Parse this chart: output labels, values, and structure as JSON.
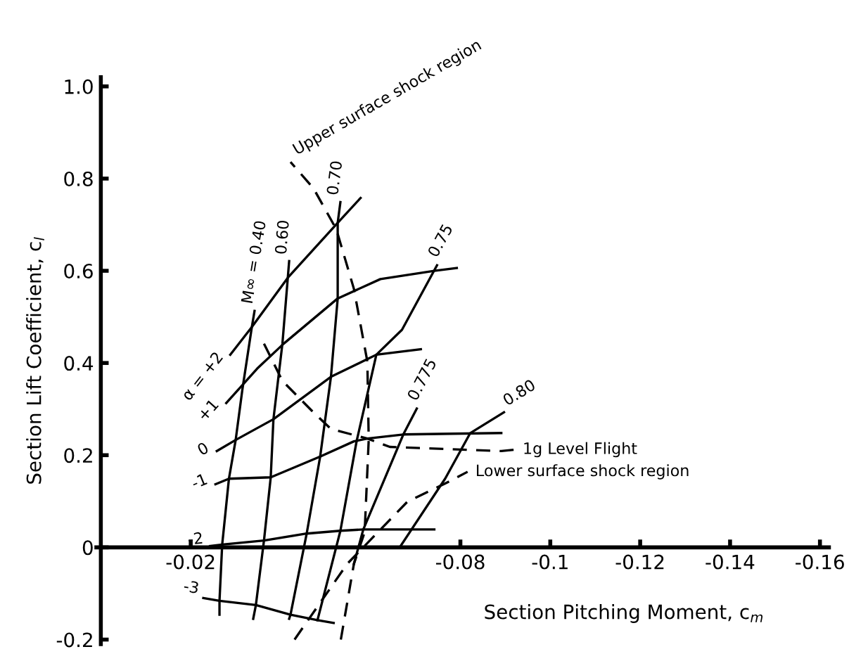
{
  "chart_data": {
    "type": "line",
    "xlabel": "Section Pitching Moment, c$_{m}$",
    "ylabel": "Section Lift Coefficient, c$_{l}$",
    "xlim": [
      0.001,
      -0.162
    ],
    "ylim": [
      -0.21,
      1.02
    ],
    "xticks": [
      -0.02,
      -0.08,
      -0.1,
      -0.12,
      -0.14,
      -0.16
    ],
    "yticks": [
      -0.2,
      0,
      0.2,
      0.4,
      0.6,
      0.8,
      {
        "value": 1.0,
        "label": "1.0"
      }
    ],
    "grid": false,
    "legend": false,
    "marker": "none",
    "line_style": "solid",
    "series": [
      {
        "name": "M∞ = 0.40",
        "color": "#000000",
        "x": [
          -0.0264,
          -0.0264,
          -0.027,
          -0.0285,
          -0.03,
          -0.0315,
          -0.0336,
          -0.0342
        ],
        "values": [
          -0.146,
          -0.116,
          0.006,
          0.149,
          0.233,
          0.343,
          0.478,
          0.513
        ]
      },
      {
        "name": "0.60",
        "color": "#000000",
        "x": [
          -0.0339,
          -0.0345,
          -0.0363,
          -0.0378,
          -0.0384,
          -0.0404,
          -0.0416,
          -0.0419
        ],
        "values": [
          -0.155,
          -0.125,
          0.015,
          0.152,
          0.278,
          0.442,
          0.585,
          0.621
        ]
      },
      {
        "name": "0.70",
        "color": "#000000",
        "x": [
          -0.0419,
          -0.0422,
          -0.0458,
          -0.0488,
          -0.0512,
          -0.0527,
          -0.0527,
          -0.0533
        ],
        "values": [
          -0.155,
          -0.146,
          0.03,
          0.197,
          0.37,
          0.54,
          0.704,
          0.749
        ]
      },
      {
        "name": "0.75",
        "color": "#000000",
        "x": [
          -0.0482,
          -0.0533,
          -0.0569,
          -0.0613,
          -0.067,
          -0.0748
        ],
        "values": [
          -0.158,
          0.036,
          0.23,
          0.418,
          0.472,
          0.612
        ]
      },
      {
        "name": "0.775",
        "color": "#000000",
        "x": [
          -0.0563,
          -0.0584,
          -0.0673,
          -0.0703
        ],
        "values": [
          -0.036,
          0.039,
          0.245,
          0.301
        ]
      },
      {
        "name": "0.80",
        "color": "#000000",
        "x": [
          -0.0667,
          -0.0766,
          -0.0822,
          -0.0897
        ],
        "values": [
          0.003,
          0.149,
          0.248,
          0.293
        ]
      },
      {
        "name": "α = +2",
        "color": "#000000",
        "x": [
          -0.0578,
          -0.0527,
          -0.0416,
          -0.0336,
          -0.0288
        ],
        "values": [
          0.758,
          0.704,
          0.585,
          0.478,
          0.418
        ]
      },
      {
        "name": "+1",
        "color": "#000000",
        "x": [
          -0.0792,
          -0.0742,
          -0.0622,
          -0.0527,
          -0.0407,
          -0.0348,
          -0.0279
        ],
        "values": [
          0.606,
          0.6,
          0.582,
          0.54,
          0.442,
          0.388,
          0.313
        ]
      },
      {
        "name": "0",
        "color": "#000000",
        "x": [
          -0.0712,
          -0.0613,
          -0.0512,
          -0.0384,
          -0.03,
          -0.0258
        ],
        "values": [
          0.43,
          0.418,
          0.37,
          0.278,
          0.233,
          0.209
        ]
      },
      {
        "name": "-1",
        "color": "#000000",
        "x": [
          -0.0891,
          -0.0673,
          -0.0593,
          -0.0563,
          -0.0488,
          -0.0378,
          -0.0285,
          -0.0255
        ],
        "values": [
          0.248,
          0.245,
          0.236,
          0.23,
          0.197,
          0.152,
          0.149,
          0.137
        ]
      },
      {
        "name": "-2",
        "color": "#000000",
        "x": [
          -0.0742,
          -0.0584,
          -0.0533,
          -0.0458,
          -0.0363,
          -0.027,
          -0.0243
        ],
        "values": [
          0.039,
          0.039,
          0.036,
          0.03,
          0.015,
          0.006,
          0.003
        ]
      },
      {
        "name": "-3",
        "color": "#000000",
        "x": [
          -0.0518,
          -0.0482,
          -0.0422,
          -0.0345,
          -0.0264,
          -0.0228
        ],
        "values": [
          -0.164,
          -0.158,
          -0.146,
          -0.125,
          -0.116,
          -0.11
        ]
      },
      {
        "name": "Upper surface shock region",
        "color": "#000000",
        "line_style": "dashed",
        "x": [
          -0.0534,
          -0.0563,
          -0.0587,
          -0.0596,
          -0.0593,
          -0.0563,
          -0.0524,
          -0.0473,
          -0.0422
        ],
        "values": [
          -0.2,
          -0.036,
          0.033,
          0.233,
          0.403,
          0.561,
          0.69,
          0.779,
          0.836
        ]
      },
      {
        "name": "1g Level Flight",
        "color": "#000000",
        "line_style": "dashed",
        "x": [
          -0.0363,
          -0.0404,
          -0.0473,
          -0.0512,
          -0.0593,
          -0.0643,
          -0.0891,
          -0.0921
        ],
        "values": [
          0.442,
          0.361,
          0.293,
          0.257,
          0.236,
          0.218,
          0.209,
          0.212
        ]
      },
      {
        "name": "Lower surface shock region",
        "color": "#000000",
        "line_style": "dashed",
        "x": [
          -0.0431,
          -0.0548,
          -0.0682,
          -0.0763,
          -0.0816
        ],
        "values": [
          -0.2,
          -0.036,
          0.099,
          0.137,
          0.164
        ]
      }
    ]
  }
}
